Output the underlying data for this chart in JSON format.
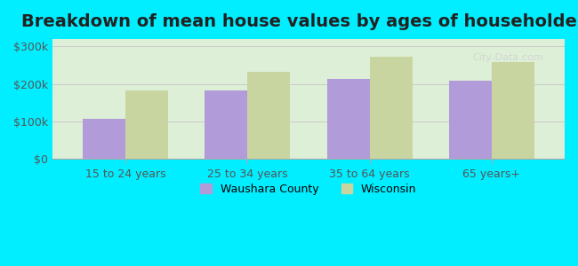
{
  "title": "Breakdown of mean house values by ages of householders",
  "categories": [
    "15 to 24 years",
    "25 to 34 years",
    "35 to 64 years",
    "65 years+"
  ],
  "waushara_values": [
    108000,
    183000,
    213000,
    208000
  ],
  "wisconsin_values": [
    182000,
    233000,
    273000,
    258000
  ],
  "bar_color_waushara": "#b19cd9",
  "bar_color_wisconsin": "#c8d5a0",
  "background_color": "#00eeff",
  "plot_bg_color": "#deefd8",
  "ylim": [
    0,
    320000
  ],
  "yticks": [
    0,
    100000,
    200000,
    300000
  ],
  "ytick_labels": [
    "$0",
    "$100k",
    "$200k",
    "$300k"
  ],
  "title_fontsize": 14,
  "legend_waushara": "Waushara County",
  "legend_wisconsin": "Wisconsin",
  "bar_width": 0.35,
  "grid_color": "#cccccc"
}
